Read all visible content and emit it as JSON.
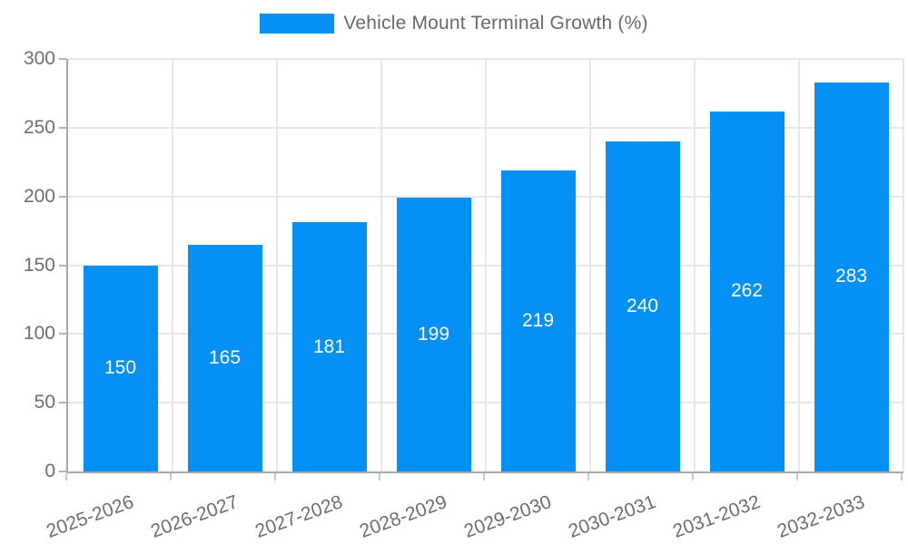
{
  "chart_data": {
    "type": "bar",
    "title": "",
    "legend": "Vehicle Mount Terminal Growth (%)",
    "legend_position": "top",
    "categories": [
      "2025-2026",
      "2026-2027",
      "2027-2028",
      "2028-2029",
      "2029-2030",
      "2030-2031",
      "2031-2032",
      "2032-2033"
    ],
    "values": [
      150,
      165,
      181,
      199,
      219,
      240,
      262,
      283
    ],
    "xlabel": "",
    "ylabel": "",
    "ylim": [
      0,
      300
    ],
    "yticks": [
      0,
      50,
      100,
      150,
      200,
      250,
      300
    ],
    "grid": true,
    "bar_color": "#0590f5",
    "value_label_color": "#ffffff",
    "axis_text_color": "#6e6e6e",
    "gridline_color": "#e7e7e7",
    "axis_line_color": "#a8a8a8"
  }
}
